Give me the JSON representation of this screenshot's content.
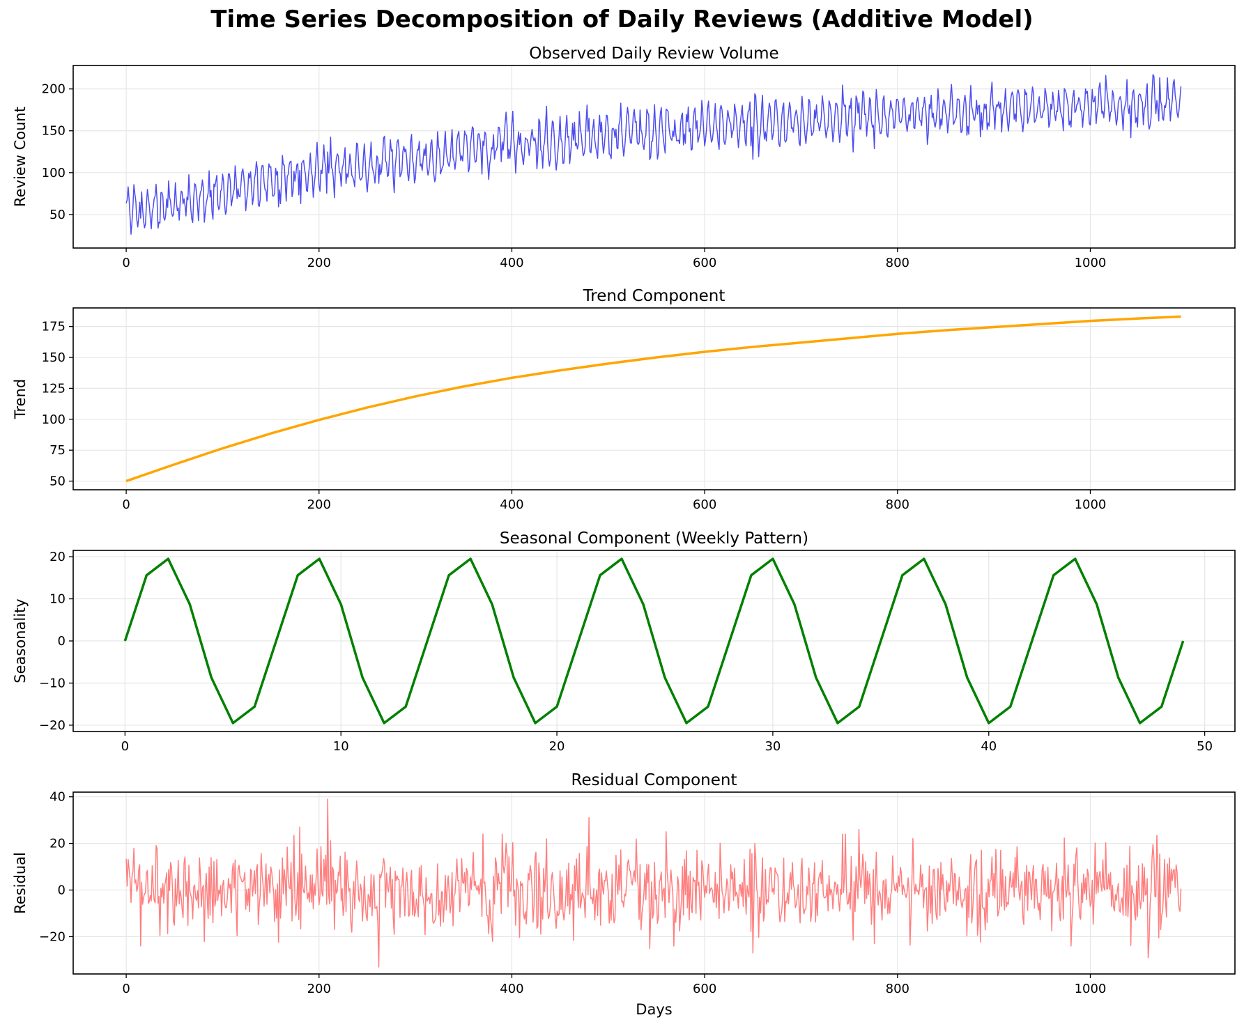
{
  "title": "Time Series Decomposition of Daily Reviews (Additive Model)",
  "chart_data": [
    {
      "type": "line",
      "title": "Observed Daily Review Volume",
      "xlabel": "",
      "ylabel": "Review Count",
      "xlim": [
        -55,
        1150
      ],
      "ylim": [
        10,
        228
      ],
      "xticks": [
        0,
        200,
        400,
        600,
        800,
        1000
      ],
      "yticks": [
        50,
        100,
        150,
        200
      ],
      "grid": true,
      "color": "#4444ee",
      "line_width": 1.5,
      "series_rule": "trend + weekly seasonal + noise, daily 0-1094",
      "x": [
        0,
        50,
        100,
        150,
        200,
        250,
        300,
        350,
        400,
        450,
        500,
        550,
        600,
        650,
        700,
        750,
        800,
        850,
        900,
        950,
        1000,
        1050,
        1094
      ],
      "values": [
        55,
        63,
        80,
        92,
        100,
        108,
        117,
        125,
        131,
        137,
        143,
        148,
        154,
        158,
        162,
        166,
        169,
        172,
        175,
        178,
        180,
        182,
        183
      ]
    },
    {
      "type": "line",
      "title": "Trend Component",
      "xlabel": "",
      "ylabel": "Trend",
      "xlim": [
        -55,
        1150
      ],
      "ylim": [
        43,
        190
      ],
      "xticks": [
        0,
        200,
        400,
        600,
        800,
        1000
      ],
      "yticks": [
        50,
        75,
        100,
        125,
        150,
        175
      ],
      "grid": true,
      "color": "#ffa500",
      "line_width": 3.5,
      "x": [
        0,
        50,
        100,
        150,
        200,
        250,
        300,
        350,
        400,
        450,
        500,
        550,
        600,
        650,
        700,
        750,
        800,
        850,
        900,
        950,
        1000,
        1050,
        1094
      ],
      "values": [
        50,
        63.5,
        76.5,
        88.5,
        99.5,
        109.5,
        118.5,
        126.5,
        133.5,
        139.5,
        145,
        150,
        154.5,
        158.5,
        162,
        165.5,
        169,
        172,
        174.5,
        177,
        179.5,
        181.5,
        183
      ]
    },
    {
      "type": "line",
      "title": "Seasonal Component (Weekly Pattern)",
      "xlabel": "",
      "ylabel": "Seasonality",
      "xlim": [
        -2.4,
        51.4
      ],
      "ylim": [
        -21.5,
        21.5
      ],
      "xticks": [
        0,
        10,
        20,
        30,
        40,
        50
      ],
      "yticks": [
        -20,
        -10,
        0,
        10,
        20
      ],
      "ytick_labels": [
        "−20",
        "−10",
        "0",
        "10",
        "20"
      ],
      "grid": true,
      "color": "#008000",
      "line_width": 3.5,
      "x": [
        0,
        1,
        2,
        3,
        4,
        5,
        6,
        7,
        8,
        9,
        10,
        11,
        12,
        13,
        14,
        15,
        16,
        17,
        18,
        19,
        20,
        21,
        22,
        23,
        24,
        25,
        26,
        27,
        28,
        29,
        30,
        31,
        32,
        33,
        34,
        35,
        36,
        37,
        38,
        39,
        40,
        41,
        42,
        43,
        44,
        45,
        46,
        47,
        48,
        49
      ],
      "values": [
        0,
        15.6,
        19.5,
        8.7,
        -8.7,
        -19.5,
        -15.6,
        0,
        15.6,
        19.5,
        8.7,
        -8.7,
        -19.5,
        -15.6,
        0,
        15.6,
        19.5,
        8.7,
        -8.7,
        -19.5,
        -15.6,
        0,
        15.6,
        19.5,
        8.7,
        -8.7,
        -19.5,
        -15.6,
        0,
        15.6,
        19.5,
        8.7,
        -8.7,
        -19.5,
        -15.6,
        0,
        15.6,
        19.5,
        8.7,
        -8.7,
        -19.5,
        -15.6,
        0,
        15.6,
        19.5,
        8.7,
        -8.7,
        -19.5,
        -15.6,
        0
      ]
    },
    {
      "type": "line",
      "title": "Residual Component",
      "xlabel": "Days",
      "ylabel": "Residual",
      "xlim": [
        -55,
        1150
      ],
      "ylim": [
        -36,
        42
      ],
      "xticks": [
        0,
        200,
        400,
        600,
        800,
        1000
      ],
      "yticks": [
        -20,
        0,
        20,
        40
      ],
      "ytick_labels": [
        "−20",
        "0",
        "20",
        "40"
      ],
      "grid": true,
      "color": "#ff7f7f",
      "line_width": 1.5,
      "series_rule": "daily noise, 0-1094, mostly within ±20",
      "x": [
        0,
        100,
        180,
        209,
        262,
        380,
        480,
        543,
        560,
        650,
        760,
        980,
        1060,
        1094
      ],
      "values": [
        5,
        -2,
        27,
        39,
        -33,
        -22,
        31,
        -25,
        25,
        -27,
        26,
        -24,
        -29,
        7
      ]
    }
  ]
}
